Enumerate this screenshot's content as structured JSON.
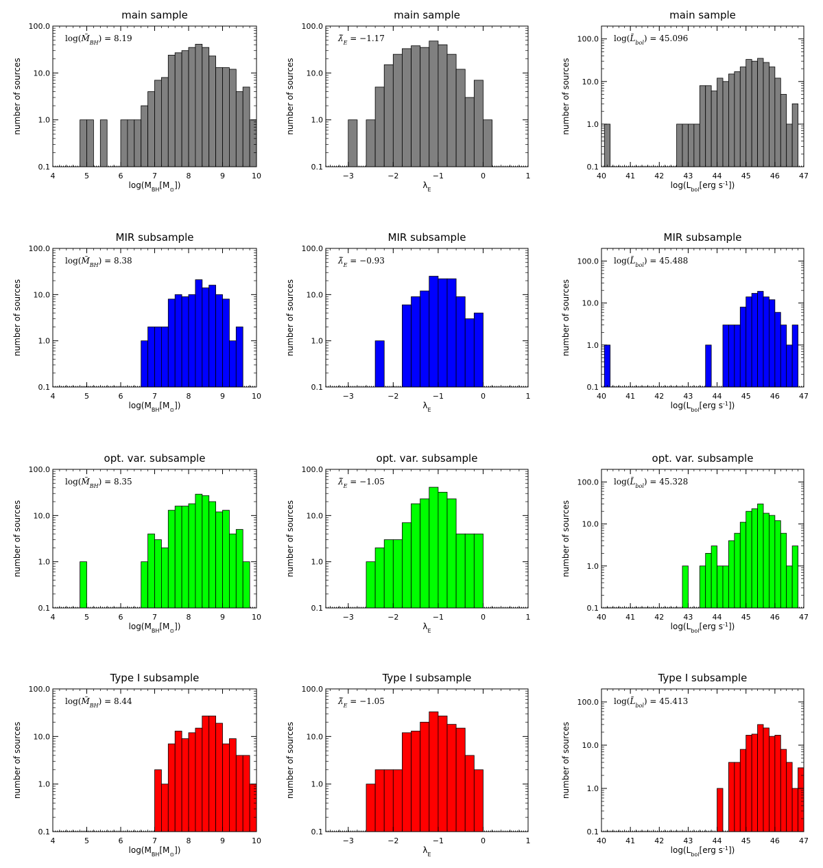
{
  "figure": {
    "panels": [
      {
        "row": 0,
        "col": 0,
        "title": "main sample",
        "annotation": "log(M̃_BH) = 8.19"
      },
      {
        "row": 0,
        "col": 1,
        "title": "main sample",
        "annotation": "λ̃_E = −1.17"
      },
      {
        "row": 0,
        "col": 2,
        "title": "main sample",
        "annotation": "log(L̃_bol) = 45.096"
      },
      {
        "row": 1,
        "col": 0,
        "title": "MIR subsample",
        "annotation": "log(M̃_BH) = 8.38"
      },
      {
        "row": 1,
        "col": 1,
        "title": "MIR subsample",
        "annotation": "λ̃_E = −0.93"
      },
      {
        "row": 1,
        "col": 2,
        "title": "MIR subsample",
        "annotation": "log(L̃_bol) = 45.488"
      },
      {
        "row": 2,
        "col": 0,
        "title": "opt. var. subsample",
        "annotation": "log(M̃_BH) = 8.35"
      },
      {
        "row": 2,
        "col": 1,
        "title": "opt. var. subsample",
        "annotation": "λ̃_E = −1.05"
      },
      {
        "row": 2,
        "col": 2,
        "title": "opt. var. subsample",
        "annotation": "log(L̃_bol) = 45.328"
      },
      {
        "row": 3,
        "col": 0,
        "title": "Type I subsample",
        "annotation": "log(M̃_BH) = 8.44"
      },
      {
        "row": 3,
        "col": 1,
        "title": "Type I subsample",
        "annotation": "λ̃_E = −1.05"
      },
      {
        "row": 3,
        "col": 2,
        "title": "Type I subsample",
        "annotation": "log(L̃_bol) = 45.413"
      }
    ]
  },
  "chart_data": [
    {
      "type": "bar",
      "title": "main sample",
      "xlabel": "log(M_BH[M_⊙])",
      "ylabel": "number of sources",
      "xlim": [
        4,
        10
      ],
      "ylim": [
        0.1,
        100
      ],
      "yscale": "log",
      "xticks": [
        4,
        5,
        6,
        7,
        8,
        9,
        10
      ],
      "yticks": [
        "0.1",
        "1.0",
        "10.0",
        "100.0"
      ],
      "bin_width": 0.2,
      "color": "#808080",
      "annotation": "log(M̃_BH) = 8.19",
      "bins": [
        [
          4.9,
          1
        ],
        [
          5.1,
          1
        ],
        [
          5.5,
          1
        ],
        [
          6.1,
          1
        ],
        [
          6.3,
          1
        ],
        [
          6.5,
          1
        ],
        [
          6.7,
          2
        ],
        [
          6.9,
          4
        ],
        [
          7.1,
          7
        ],
        [
          7.3,
          8
        ],
        [
          7.5,
          24
        ],
        [
          7.7,
          27
        ],
        [
          7.9,
          30
        ],
        [
          8.1,
          35
        ],
        [
          8.3,
          41
        ],
        [
          8.5,
          35
        ],
        [
          8.7,
          23
        ],
        [
          8.9,
          13
        ],
        [
          9.1,
          13
        ],
        [
          9.3,
          12
        ],
        [
          9.5,
          4
        ],
        [
          9.7,
          5
        ],
        [
          9.9,
          1
        ]
      ]
    },
    {
      "type": "bar",
      "title": "main sample",
      "xlabel": "λ_E",
      "ylabel": "number of sources",
      "xlim": [
        -3.5,
        1
      ],
      "ylim": [
        0.1,
        100
      ],
      "yscale": "log",
      "xticks": [
        -3,
        -2,
        -1,
        0,
        1
      ],
      "yticks": [
        "0.1",
        "1.0",
        "10.0",
        "100.0"
      ],
      "bin_width": 0.2,
      "color": "#808080",
      "annotation": "λ̃_E = −1.17",
      "bins": [
        [
          -2.9,
          1
        ],
        [
          -2.5,
          1
        ],
        [
          -2.3,
          5
        ],
        [
          -2.1,
          15
        ],
        [
          -1.9,
          25
        ],
        [
          -1.7,
          33
        ],
        [
          -1.5,
          38
        ],
        [
          -1.3,
          35
        ],
        [
          -1.1,
          48
        ],
        [
          -0.9,
          40
        ],
        [
          -0.7,
          25
        ],
        [
          -0.5,
          12
        ],
        [
          -0.3,
          3
        ],
        [
          -0.1,
          7
        ],
        [
          0.1,
          1
        ]
      ]
    },
    {
      "type": "bar",
      "title": "main sample",
      "xlabel": "log(L_bol[erg s⁻¹])",
      "ylabel": "number of sources",
      "xlim": [
        40,
        47
      ],
      "ylim": [
        0.1,
        200
      ],
      "yscale": "log",
      "xticks": [
        40,
        41,
        42,
        43,
        44,
        45,
        46,
        47
      ],
      "yticks": [
        "0.1",
        "1.0",
        "10.0",
        "100.0"
      ],
      "bin_width": 0.2,
      "color": "#808080",
      "annotation": "log(L̃_bol) = 45.096",
      "bins": [
        [
          40.2,
          1
        ],
        [
          42.7,
          1
        ],
        [
          42.9,
          1
        ],
        [
          43.1,
          1
        ],
        [
          43.3,
          1
        ],
        [
          43.5,
          8
        ],
        [
          43.7,
          8
        ],
        [
          43.9,
          6
        ],
        [
          44.1,
          12
        ],
        [
          44.3,
          10
        ],
        [
          44.5,
          15
        ],
        [
          44.7,
          17
        ],
        [
          44.9,
          22
        ],
        [
          45.1,
          33
        ],
        [
          45.3,
          30
        ],
        [
          45.5,
          35
        ],
        [
          45.7,
          28
        ],
        [
          45.9,
          22
        ],
        [
          46.1,
          12
        ],
        [
          46.3,
          5
        ],
        [
          46.5,
          1
        ],
        [
          46.7,
          3
        ]
      ]
    },
    {
      "type": "bar",
      "title": "MIR subsample",
      "xlabel": "log(M_BH[M_⊙])",
      "ylabel": "number of sources",
      "xlim": [
        4,
        10
      ],
      "ylim": [
        0.1,
        100
      ],
      "yscale": "log",
      "xticks": [
        4,
        5,
        6,
        7,
        8,
        9,
        10
      ],
      "yticks": [
        "0.1",
        "1.0",
        "10.0",
        "100.0"
      ],
      "bin_width": 0.2,
      "color": "#0000ff",
      "annotation": "log(M̃_BH) = 8.38",
      "bins": [
        [
          6.7,
          1
        ],
        [
          6.9,
          2
        ],
        [
          7.1,
          2
        ],
        [
          7.3,
          2
        ],
        [
          7.5,
          8
        ],
        [
          7.7,
          10
        ],
        [
          7.9,
          9
        ],
        [
          8.1,
          10
        ],
        [
          8.3,
          21
        ],
        [
          8.5,
          14
        ],
        [
          8.7,
          16
        ],
        [
          8.9,
          10
        ],
        [
          9.1,
          8
        ],
        [
          9.3,
          1
        ],
        [
          9.5,
          2
        ]
      ]
    },
    {
      "type": "bar",
      "title": "MIR subsample",
      "xlabel": "λ_E",
      "ylabel": "number of sources",
      "xlim": [
        -3.5,
        1
      ],
      "ylim": [
        0.1,
        100
      ],
      "yscale": "log",
      "xticks": [
        -3,
        -2,
        -1,
        0,
        1
      ],
      "yticks": [
        "0.1",
        "1.0",
        "10.0",
        "100.0"
      ],
      "bin_width": 0.2,
      "color": "#0000ff",
      "annotation": "λ̃_E = −0.93",
      "bins": [
        [
          -2.3,
          1
        ],
        [
          -1.7,
          6
        ],
        [
          -1.5,
          9
        ],
        [
          -1.3,
          12
        ],
        [
          -1.1,
          25
        ],
        [
          -0.9,
          22
        ],
        [
          -0.7,
          22
        ],
        [
          -0.5,
          9
        ],
        [
          -0.3,
          3
        ],
        [
          -0.1,
          4
        ]
      ]
    },
    {
      "type": "bar",
      "title": "MIR subsample",
      "xlabel": "log(L_bol[erg s⁻¹])",
      "ylabel": "number of sources",
      "xlim": [
        40,
        47
      ],
      "ylim": [
        0.1,
        200
      ],
      "yscale": "log",
      "xticks": [
        40,
        41,
        42,
        43,
        44,
        45,
        46,
        47
      ],
      "yticks": [
        "0.1",
        "1.0",
        "10.0",
        "100.0"
      ],
      "bin_width": 0.2,
      "color": "#0000ff",
      "annotation": "log(L̃_bol) = 45.488",
      "bins": [
        [
          40.2,
          1
        ],
        [
          43.7,
          1
        ],
        [
          44.3,
          3
        ],
        [
          44.5,
          3
        ],
        [
          44.7,
          3
        ],
        [
          44.9,
          8
        ],
        [
          45.1,
          14
        ],
        [
          45.3,
          17
        ],
        [
          45.5,
          19
        ],
        [
          45.7,
          14
        ],
        [
          45.9,
          12
        ],
        [
          46.1,
          6
        ],
        [
          46.3,
          3
        ],
        [
          46.5,
          1
        ],
        [
          46.7,
          3
        ]
      ]
    },
    {
      "type": "bar",
      "title": "opt. var. subsample",
      "xlabel": "log(M_BH[M_⊙])",
      "ylabel": "number of sources",
      "xlim": [
        4,
        10
      ],
      "ylim": [
        0.1,
        100
      ],
      "yscale": "log",
      "xticks": [
        4,
        5,
        6,
        7,
        8,
        9,
        10
      ],
      "yticks": [
        "0.1",
        "1.0",
        "10.0",
        "100.0"
      ],
      "bin_width": 0.2,
      "color": "#00ff00",
      "annotation": "log(M̃_BH) = 8.35",
      "bins": [
        [
          4.9,
          1
        ],
        [
          6.7,
          1
        ],
        [
          6.9,
          4
        ],
        [
          7.1,
          3
        ],
        [
          7.3,
          2
        ],
        [
          7.5,
          13
        ],
        [
          7.7,
          16
        ],
        [
          7.9,
          16
        ],
        [
          8.1,
          18
        ],
        [
          8.3,
          29
        ],
        [
          8.5,
          27
        ],
        [
          8.7,
          20
        ],
        [
          8.9,
          12
        ],
        [
          9.1,
          13
        ],
        [
          9.3,
          4
        ],
        [
          9.5,
          5
        ],
        [
          9.7,
          1
        ]
      ]
    },
    {
      "type": "bar",
      "title": "opt. var. subsample",
      "xlabel": "λ_E",
      "ylabel": "number of sources",
      "xlim": [
        -3.5,
        1
      ],
      "ylim": [
        0.1,
        100
      ],
      "yscale": "log",
      "xticks": [
        -3,
        -2,
        -1,
        0,
        1
      ],
      "yticks": [
        "0.1",
        "1.0",
        "10.0",
        "100.0"
      ],
      "bin_width": 0.2,
      "color": "#00ff00",
      "annotation": "λ̃_E = −1.05",
      "bins": [
        [
          -2.5,
          1
        ],
        [
          -2.3,
          2
        ],
        [
          -2.1,
          3
        ],
        [
          -1.9,
          3
        ],
        [
          -1.7,
          7
        ],
        [
          -1.5,
          18
        ],
        [
          -1.3,
          23
        ],
        [
          -1.1,
          41
        ],
        [
          -0.9,
          32
        ],
        [
          -0.7,
          23
        ],
        [
          -0.5,
          4
        ],
        [
          -0.3,
          4
        ],
        [
          -0.1,
          4
        ]
      ]
    },
    {
      "type": "bar",
      "title": "opt. var. subsample",
      "xlabel": "log(L_bol[erg s⁻¹])",
      "ylabel": "number of sources",
      "xlim": [
        40,
        47
      ],
      "ylim": [
        0.1,
        200
      ],
      "yscale": "log",
      "xticks": [
        40,
        41,
        42,
        43,
        44,
        45,
        46,
        47
      ],
      "yticks": [
        "0.1",
        "1.0",
        "10.0",
        "100.0"
      ],
      "bin_width": 0.2,
      "color": "#00ff00",
      "annotation": "log(L̃_bol) = 45.328",
      "bins": [
        [
          42.9,
          1
        ],
        [
          43.5,
          1
        ],
        [
          43.7,
          2
        ],
        [
          43.9,
          3
        ],
        [
          44.1,
          1
        ],
        [
          44.3,
          1
        ],
        [
          44.5,
          4
        ],
        [
          44.7,
          6
        ],
        [
          44.9,
          11
        ],
        [
          45.1,
          20
        ],
        [
          45.3,
          23
        ],
        [
          45.5,
          30
        ],
        [
          45.7,
          18
        ],
        [
          45.9,
          16
        ],
        [
          46.1,
          12
        ],
        [
          46.3,
          6
        ],
        [
          46.5,
          1
        ],
        [
          46.7,
          3
        ]
      ]
    },
    {
      "type": "bar",
      "title": "Type I subsample",
      "xlabel": "log(M_BH[M_⊙])",
      "ylabel": "number of sources",
      "xlim": [
        4,
        10
      ],
      "ylim": [
        0.1,
        100
      ],
      "yscale": "log",
      "xticks": [
        4,
        5,
        6,
        7,
        8,
        9,
        10
      ],
      "yticks": [
        "0.1",
        "1.0",
        "10.0",
        "100.0"
      ],
      "bin_width": 0.2,
      "color": "#ff0000",
      "annotation": "log(M̃_BH) = 8.44",
      "bins": [
        [
          7.1,
          2
        ],
        [
          7.3,
          1
        ],
        [
          7.5,
          7
        ],
        [
          7.7,
          13
        ],
        [
          7.9,
          9
        ],
        [
          8.1,
          12
        ],
        [
          8.3,
          15
        ],
        [
          8.5,
          27
        ],
        [
          8.7,
          27
        ],
        [
          8.9,
          19
        ],
        [
          9.1,
          7
        ],
        [
          9.3,
          9
        ],
        [
          9.5,
          4
        ],
        [
          9.7,
          4
        ],
        [
          9.9,
          1
        ]
      ]
    },
    {
      "type": "bar",
      "title": "Type I subsample",
      "xlabel": "λ_E",
      "ylabel": "number of sources",
      "xlim": [
        -3.5,
        1
      ],
      "ylim": [
        0.1,
        100
      ],
      "yscale": "log",
      "xticks": [
        -3,
        -2,
        -1,
        0,
        1
      ],
      "yticks": [
        "0.1",
        "1.0",
        "10.0",
        "100.0"
      ],
      "bin_width": 0.2,
      "color": "#ff0000",
      "annotation": "λ̃_E = −1.05",
      "bins": [
        [
          -2.5,
          1
        ],
        [
          -2.3,
          2
        ],
        [
          -2.1,
          2
        ],
        [
          -1.9,
          2
        ],
        [
          -1.7,
          12
        ],
        [
          -1.5,
          13
        ],
        [
          -1.3,
          20
        ],
        [
          -1.1,
          33
        ],
        [
          -0.9,
          27
        ],
        [
          -0.7,
          18
        ],
        [
          -0.5,
          15
        ],
        [
          -0.3,
          4
        ],
        [
          -0.1,
          2
        ]
      ]
    },
    {
      "type": "bar",
      "title": "Type I subsample",
      "xlabel": "log(L_bol[erg s⁻¹])",
      "ylabel": "number of sources",
      "xlim": [
        40,
        47
      ],
      "ylim": [
        0.1,
        200
      ],
      "yscale": "log",
      "xticks": [
        40,
        41,
        42,
        43,
        44,
        45,
        46,
        47
      ],
      "yticks": [
        "0.1",
        "1.0",
        "10.0",
        "100.0"
      ],
      "bin_width": 0.2,
      "color": "#ff0000",
      "annotation": "log(L̃_bol) = 45.413",
      "bins": [
        [
          44.1,
          1
        ],
        [
          44.5,
          4
        ],
        [
          44.7,
          4
        ],
        [
          44.9,
          8
        ],
        [
          45.1,
          17
        ],
        [
          45.3,
          18
        ],
        [
          45.5,
          30
        ],
        [
          45.7,
          25
        ],
        [
          45.9,
          16
        ],
        [
          46.1,
          17
        ],
        [
          46.3,
          8
        ],
        [
          46.5,
          4
        ],
        [
          46.7,
          1
        ],
        [
          46.9,
          3
        ]
      ]
    }
  ]
}
